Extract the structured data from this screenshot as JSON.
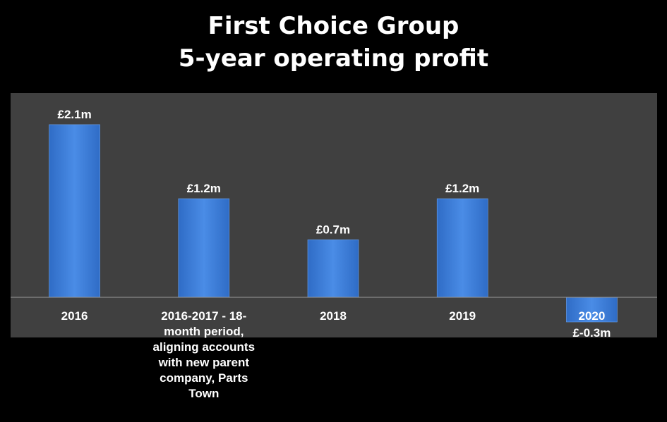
{
  "chart_data": {
    "type": "bar",
    "title_lines": [
      "First Choice Group",
      "5-year operating profit"
    ],
    "categories": [
      "2016",
      "2016-2017 - 18-month period, aligning accounts with new parent company, Parts Town",
      "2018",
      "2019",
      "2020"
    ],
    "category_label_lines": [
      [
        "2016"
      ],
      [
        "2016-2017 - 18-",
        "month period,",
        "aligning accounts",
        "with new parent",
        "company, Parts",
        "Town"
      ],
      [
        "2018"
      ],
      [
        "2019"
      ],
      [
        "2020"
      ]
    ],
    "series": [
      {
        "values": [
          2.1,
          1.2,
          0.7,
          1.2,
          -0.3
        ]
      }
    ],
    "data_labels": [
      "£2.1m",
      "£1.2m",
      "£0.7m",
      "£1.2m",
      "£-0.3m"
    ],
    "ylim": [
      -0.5,
      2.5
    ],
    "grid": false,
    "colors": {
      "background": "#000000",
      "plot_area": "#404040",
      "bar": "#3b7dd8",
      "text": "#ffffff",
      "axis": "#9a9a9a"
    }
  }
}
